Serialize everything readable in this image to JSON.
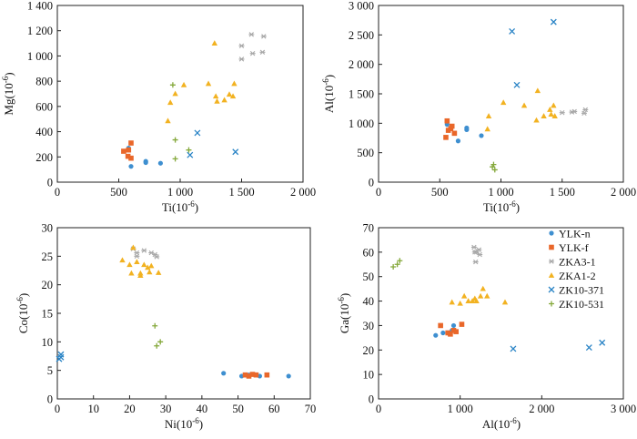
{
  "legend": {
    "placement": "inside panel 4, top-right",
    "series": [
      {
        "name": "YLK-n",
        "color": "#3e8fd0",
        "marker": "circle"
      },
      {
        "name": "YLK-f",
        "color": "#e9672a",
        "marker": "square"
      },
      {
        "name": "ZKA3-1",
        "color": "#a8a8a8",
        "marker": "asterisk"
      },
      {
        "name": "ZKA1-2",
        "color": "#f2b221",
        "marker": "triangle"
      },
      {
        "name": "ZK10-371",
        "color": "#2a84c6",
        "marker": "x"
      },
      {
        "name": "ZK10-531",
        "color": "#84a83a",
        "marker": "plus"
      }
    ]
  },
  "chart_data": [
    {
      "type": "scatter",
      "title": "",
      "xlabel": "Ti(10",
      "xlabel_sup": "-6",
      "xlabel_close": ")",
      "ylabel": "Mg(10",
      "ylabel_sup": "-6",
      "ylabel_close": ")",
      "xlim": [
        0,
        2000
      ],
      "ylim": [
        0,
        1400
      ],
      "xticks": [
        0,
        500,
        1000,
        1500,
        2000
      ],
      "xtick_labels": [
        "0",
        "500",
        "1 000",
        "1 500",
        "2 000"
      ],
      "yticks": [
        0,
        200,
        400,
        600,
        800,
        1000,
        1200,
        1400
      ],
      "ytick_labels": [
        "0",
        "200",
        "400",
        "600",
        "800",
        "1 000",
        "1 200",
        "1 400"
      ],
      "grid": false,
      "series": [
        {
          "name": "YLK-n",
          "points": [
            [
              600,
              125
            ],
            [
              720,
              165
            ],
            [
              720,
              155
            ],
            [
              840,
              150
            ],
            [
              580,
              270
            ]
          ]
        },
        {
          "name": "YLK-f",
          "points": [
            [
              540,
              245
            ],
            [
              575,
              205
            ],
            [
              600,
              190
            ],
            [
              580,
              255
            ],
            [
              600,
              310
            ]
          ]
        },
        {
          "name": "ZKA3-1",
          "points": [
            [
              1500,
              1080
            ],
            [
              1500,
              975
            ],
            [
              1580,
              1170
            ],
            [
              1590,
              1020
            ],
            [
              1670,
              1030
            ],
            [
              1680,
              1155
            ]
          ]
        },
        {
          "name": "ZKA1-2",
          "points": [
            [
              900,
              485
            ],
            [
              920,
              630
            ],
            [
              960,
              700
            ],
            [
              1030,
              770
            ],
            [
              1230,
              780
            ],
            [
              1280,
              1100
            ],
            [
              1290,
              680
            ],
            [
              1300,
              640
            ],
            [
              1360,
              650
            ],
            [
              1400,
              695
            ],
            [
              1430,
              680
            ],
            [
              1440,
              780
            ]
          ]
        },
        {
          "name": "ZK10-371",
          "points": [
            [
              1080,
              215
            ],
            [
              1140,
              390
            ],
            [
              1450,
              240
            ]
          ]
        },
        {
          "name": "ZK10-531",
          "points": [
            [
              940,
              770
            ],
            [
              960,
              335
            ],
            [
              960,
              185
            ],
            [
              1070,
              255
            ]
          ]
        }
      ]
    },
    {
      "type": "scatter",
      "title": "",
      "xlabel": "Ti(10",
      "xlabel_sup": "-6",
      "xlabel_close": ")",
      "ylabel": "Al(10",
      "ylabel_sup": "-6",
      "ylabel_close": ")",
      "xlim": [
        0,
        2000
      ],
      "ylim": [
        0,
        3000
      ],
      "xticks": [
        0,
        500,
        1000,
        1500,
        2000
      ],
      "xtick_labels": [
        "0",
        "500",
        "1 000",
        "1 500",
        "2 000"
      ],
      "yticks": [
        0,
        500,
        1000,
        1500,
        2000,
        2500,
        3000
      ],
      "ytick_labels": [
        "0",
        "500",
        "1 000",
        "1 500",
        "2 000",
        "2 500",
        "3 000"
      ],
      "grid": false,
      "series": [
        {
          "name": "YLK-n",
          "points": [
            [
              650,
              700
            ],
            [
              720,
              920
            ],
            [
              720,
              890
            ],
            [
              840,
              790
            ],
            [
              560,
              980
            ]
          ]
        },
        {
          "name": "YLK-f",
          "points": [
            [
              550,
              760
            ],
            [
              560,
              1040
            ],
            [
              570,
              880
            ],
            [
              590,
              910
            ],
            [
              600,
              950
            ],
            [
              620,
              830
            ]
          ]
        },
        {
          "name": "ZKA3-1",
          "points": [
            [
              1500,
              1180
            ],
            [
              1580,
              1190
            ],
            [
              1600,
              1200
            ],
            [
              1680,
              1170
            ],
            [
              1690,
              1230
            ]
          ]
        },
        {
          "name": "ZKA1-2",
          "points": [
            [
              890,
              900
            ],
            [
              900,
              1120
            ],
            [
              1020,
              1350
            ],
            [
              1190,
              1300
            ],
            [
              1290,
              1050
            ],
            [
              1300,
              1550
            ],
            [
              1350,
              1120
            ],
            [
              1400,
              1230
            ],
            [
              1410,
              1150
            ],
            [
              1430,
              1300
            ],
            [
              1440,
              1120
            ]
          ]
        },
        {
          "name": "ZK10-371",
          "points": [
            [
              1090,
              2560
            ],
            [
              1130,
              1650
            ],
            [
              1430,
              2720
            ]
          ]
        },
        {
          "name": "ZK10-531",
          "points": [
            [
              930,
              260
            ],
            [
              940,
              300
            ],
            [
              950,
              210
            ]
          ]
        }
      ]
    },
    {
      "type": "scatter",
      "title": "",
      "xlabel": "Ni(10",
      "xlabel_sup": "-6",
      "xlabel_close": ")",
      "ylabel": "Co(10",
      "ylabel_sup": "-6",
      "ylabel_close": ")",
      "xlim": [
        0,
        70
      ],
      "ylim": [
        0,
        30
      ],
      "xticks": [
        0,
        10,
        20,
        30,
        40,
        50,
        60,
        70
      ],
      "xtick_labels": [
        "0",
        "10",
        "20",
        "30",
        "40",
        "50",
        "60",
        "70"
      ],
      "yticks": [
        0,
        5,
        10,
        15,
        20,
        25,
        30
      ],
      "ytick_labels": [
        "0",
        "5",
        "10",
        "15",
        "20",
        "25",
        "30"
      ],
      "grid": false,
      "series": [
        {
          "name": "YLK-n",
          "points": [
            [
              46,
              4.5
            ],
            [
              51,
              4.0
            ],
            [
              53,
              4.2
            ],
            [
              56,
              4.0
            ],
            [
              64,
              4.0
            ]
          ]
        },
        {
          "name": "YLK-f",
          "points": [
            [
              52,
              4.2
            ],
            [
              53,
              4.0
            ],
            [
              54,
              4.3
            ],
            [
              55,
              4.2
            ],
            [
              58,
              4.2
            ]
          ]
        },
        {
          "name": "ZKA3-1",
          "points": [
            [
              21,
              26.3
            ],
            [
              22,
              25.6
            ],
            [
              24,
              26.0
            ],
            [
              26,
              25.6
            ],
            [
              27,
              25.3
            ],
            [
              27.5,
              24.9
            ],
            [
              22,
              25.0
            ]
          ]
        },
        {
          "name": "ZKA1-2",
          "points": [
            [
              18,
              24.3
            ],
            [
              20,
              23.5
            ],
            [
              20.5,
              22.0
            ],
            [
              21,
              26.5
            ],
            [
              22,
              24.0
            ],
            [
              23,
              22.0
            ],
            [
              23,
              21.6
            ],
            [
              24,
              23.5
            ],
            [
              25,
              23.0
            ],
            [
              25.5,
              22.2
            ],
            [
              26,
              23.3
            ],
            [
              28,
              22.1
            ]
          ]
        },
        {
          "name": "ZK10-371",
          "points": [
            [
              0.5,
              7.0
            ],
            [
              1.0,
              7.8
            ],
            [
              1.0,
              7.3
            ]
          ]
        },
        {
          "name": "ZK10-531",
          "points": [
            [
              27,
              12.8
            ],
            [
              27.5,
              9.3
            ],
            [
              28.5,
              10.0
            ]
          ]
        }
      ]
    },
    {
      "type": "scatter",
      "title": "",
      "xlabel": "Al(10",
      "xlabel_sup": "-6",
      "xlabel_close": ")",
      "ylabel": "Ga(10",
      "ylabel_sup": "-6",
      "ylabel_close": ")",
      "xlim": [
        0,
        3000
      ],
      "ylim": [
        0,
        70
      ],
      "xticks": [
        0,
        1000,
        2000,
        3000
      ],
      "xtick_labels": [
        "0",
        "1 000",
        "2 000",
        "3 000"
      ],
      "yticks": [
        0,
        10,
        20,
        30,
        40,
        50,
        60,
        70
      ],
      "ytick_labels": [
        "0",
        "10",
        "20",
        "30",
        "40",
        "50",
        "60",
        "70"
      ],
      "grid": false,
      "series": [
        {
          "name": "YLK-n",
          "points": [
            [
              700,
              26
            ],
            [
              790,
              27
            ],
            [
              900,
              28
            ],
            [
              920,
              30
            ]
          ]
        },
        {
          "name": "YLK-f",
          "points": [
            [
              760,
              30
            ],
            [
              850,
              27
            ],
            [
              880,
              26.5
            ],
            [
              920,
              28
            ],
            [
              950,
              27.5
            ],
            [
              1020,
              30.5
            ]
          ]
        },
        {
          "name": "ZKA3-1",
          "points": [
            [
              1170,
              62
            ],
            [
              1180,
              60
            ],
            [
              1190,
              56
            ],
            [
              1200,
              60
            ],
            [
              1230,
              61
            ],
            [
              1240,
              59
            ]
          ]
        },
        {
          "name": "ZKA1-2",
          "points": [
            [
              900,
              39.5
            ],
            [
              1050,
              42
            ],
            [
              1150,
              40
            ],
            [
              1180,
              41
            ],
            [
              1200,
              40
            ],
            [
              1250,
              42
            ],
            [
              1280,
              45
            ],
            [
              1330,
              42
            ],
            [
              1550,
              39.5
            ],
            [
              1100,
              40
            ],
            [
              1000,
              39
            ]
          ]
        },
        {
          "name": "ZK10-371",
          "points": [
            [
              1650,
              20.5
            ],
            [
              2580,
              21
            ],
            [
              2740,
              23
            ]
          ]
        },
        {
          "name": "ZK10-531",
          "points": [
            [
              180,
              54
            ],
            [
              230,
              55
            ],
            [
              260,
              56.5
            ]
          ]
        }
      ]
    }
  ]
}
